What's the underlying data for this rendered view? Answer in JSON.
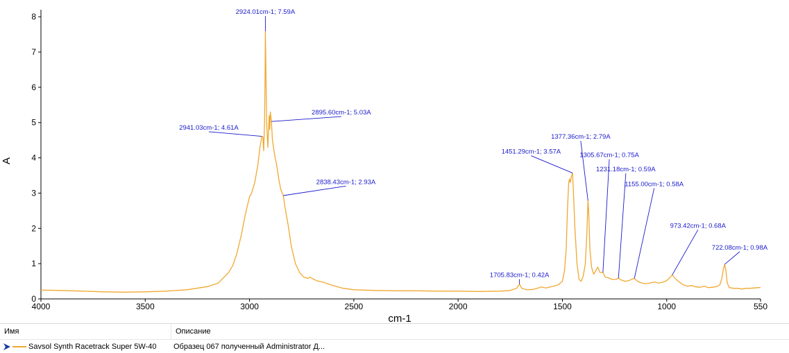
{
  "chart_data": {
    "type": "line",
    "xlabel": "cm-1",
    "ylabel": "A",
    "xlim": [
      4000,
      550
    ],
    "ylim": [
      0,
      8.2
    ],
    "x_reversed": true,
    "xticks": [
      4000,
      3500,
      3000,
      2500,
      2000,
      1500,
      1000,
      550
    ],
    "yticks": [
      0,
      1,
      2,
      3,
      4,
      5,
      6,
      7,
      8
    ],
    "grid": false,
    "series": [
      {
        "name": "Savsol Synth Racetrack Super 5W-40",
        "color": "#f0a830",
        "points": [
          [
            4000,
            0.25
          ],
          [
            3900,
            0.24
          ],
          [
            3800,
            0.22
          ],
          [
            3700,
            0.2
          ],
          [
            3600,
            0.19
          ],
          [
            3500,
            0.2
          ],
          [
            3400,
            0.22
          ],
          [
            3300,
            0.26
          ],
          [
            3200,
            0.35
          ],
          [
            3150,
            0.45
          ],
          [
            3100,
            0.75
          ],
          [
            3080,
            0.95
          ],
          [
            3060,
            1.3
          ],
          [
            3040,
            1.8
          ],
          [
            3020,
            2.4
          ],
          [
            3000,
            2.9
          ],
          [
            2990,
            3.0
          ],
          [
            2975,
            3.3
          ],
          [
            2960,
            3.8
          ],
          [
            2950,
            4.3
          ],
          [
            2941,
            4.61
          ],
          [
            2936,
            4.6
          ],
          [
            2932,
            4.2
          ],
          [
            2928,
            5.0
          ],
          [
            2925,
            6.5
          ],
          [
            2924,
            7.59
          ],
          [
            2922,
            6.8
          ],
          [
            2918,
            5.0
          ],
          [
            2912,
            4.3
          ],
          [
            2906,
            5.2
          ],
          [
            2903,
            4.8
          ],
          [
            2900,
            5.3
          ],
          [
            2895,
            5.03
          ],
          [
            2890,
            4.5
          ],
          [
            2880,
            4.1
          ],
          [
            2870,
            3.8
          ],
          [
            2860,
            3.4
          ],
          [
            2850,
            3.1
          ],
          [
            2842,
            2.98
          ],
          [
            2838,
            2.93
          ],
          [
            2830,
            2.6
          ],
          [
            2815,
            2.1
          ],
          [
            2800,
            1.5
          ],
          [
            2780,
            1.0
          ],
          [
            2760,
            0.75
          ],
          [
            2740,
            0.62
          ],
          [
            2720,
            0.58
          ],
          [
            2710,
            0.62
          ],
          [
            2700,
            0.58
          ],
          [
            2680,
            0.52
          ],
          [
            2650,
            0.48
          ],
          [
            2600,
            0.38
          ],
          [
            2550,
            0.3
          ],
          [
            2500,
            0.26
          ],
          [
            2400,
            0.24
          ],
          [
            2300,
            0.23
          ],
          [
            2200,
            0.23
          ],
          [
            2100,
            0.22
          ],
          [
            2000,
            0.22
          ],
          [
            1900,
            0.21
          ],
          [
            1800,
            0.22
          ],
          [
            1750,
            0.24
          ],
          [
            1720,
            0.3
          ],
          [
            1705.83,
            0.42
          ],
          [
            1695,
            0.3
          ],
          [
            1670,
            0.26
          ],
          [
            1640,
            0.27
          ],
          [
            1610,
            0.32
          ],
          [
            1600,
            0.34
          ],
          [
            1580,
            0.31
          ],
          [
            1550,
            0.35
          ],
          [
            1520,
            0.4
          ],
          [
            1500,
            0.5
          ],
          [
            1490,
            0.8
          ],
          [
            1482,
            1.4
          ],
          [
            1476,
            2.5
          ],
          [
            1470,
            3.3
          ],
          [
            1466,
            3.4
          ],
          [
            1462,
            3.3
          ],
          [
            1458,
            3.45
          ],
          [
            1455,
            3.5
          ],
          [
            1451.29,
            3.57
          ],
          [
            1447,
            3.0
          ],
          [
            1440,
            2.0
          ],
          [
            1430,
            1.0
          ],
          [
            1420,
            0.55
          ],
          [
            1410,
            0.5
          ],
          [
            1400,
            0.65
          ],
          [
            1390,
            1.0
          ],
          [
            1383,
            1.8
          ],
          [
            1379,
            2.5
          ],
          [
            1377.36,
            2.79
          ],
          [
            1374,
            2.5
          ],
          [
            1368,
            1.4
          ],
          [
            1360,
            0.9
          ],
          [
            1350,
            0.7
          ],
          [
            1340,
            0.8
          ],
          [
            1330,
            0.9
          ],
          [
            1320,
            0.75
          ],
          [
            1310,
            0.75
          ],
          [
            1305.67,
            0.75
          ],
          [
            1295,
            0.62
          ],
          [
            1280,
            0.6
          ],
          [
            1260,
            0.55
          ],
          [
            1240,
            0.56
          ],
          [
            1231.18,
            0.59
          ],
          [
            1220,
            0.54
          ],
          [
            1200,
            0.5
          ],
          [
            1180,
            0.52
          ],
          [
            1170,
            0.55
          ],
          [
            1155,
            0.58
          ],
          [
            1140,
            0.5
          ],
          [
            1120,
            0.45
          ],
          [
            1100,
            0.43
          ],
          [
            1080,
            0.45
          ],
          [
            1060,
            0.48
          ],
          [
            1040,
            0.45
          ],
          [
            1020,
            0.47
          ],
          [
            1000,
            0.52
          ],
          [
            985,
            0.6
          ],
          [
            973.42,
            0.68
          ],
          [
            960,
            0.58
          ],
          [
            940,
            0.48
          ],
          [
            920,
            0.4
          ],
          [
            900,
            0.36
          ],
          [
            880,
            0.38
          ],
          [
            860,
            0.34
          ],
          [
            840,
            0.33
          ],
          [
            820,
            0.36
          ],
          [
            800,
            0.32
          ],
          [
            780,
            0.33
          ],
          [
            760,
            0.35
          ],
          [
            745,
            0.4
          ],
          [
            735,
            0.6
          ],
          [
            728,
            0.85
          ],
          [
            722.08,
            0.98
          ],
          [
            716,
            0.8
          ],
          [
            710,
            0.45
          ],
          [
            700,
            0.32
          ],
          [
            680,
            0.3
          ],
          [
            660,
            0.3
          ],
          [
            640,
            0.28
          ],
          [
            620,
            0.3
          ],
          [
            600,
            0.3
          ],
          [
            580,
            0.31
          ],
          [
            560,
            0.32
          ],
          [
            550,
            0.32
          ]
        ]
      }
    ],
    "annotations": [
      {
        "text": "2924.01cm-1; 7.59A",
        "x": 2924.01,
        "y": 7.59,
        "lx": 2924.01,
        "ly": 8.02
      },
      {
        "text": "2941.03cm-1; 4.61A",
        "x": 2941.03,
        "y": 4.61,
        "lx": 3195,
        "ly": 4.74
      },
      {
        "text": "2895.60cm-1; 5.03A",
        "x": 2895.6,
        "y": 5.03,
        "lx": 2560,
        "ly": 5.17
      },
      {
        "text": "2838.43cm-1; 2.93A",
        "x": 2838.43,
        "y": 2.93,
        "lx": 2538,
        "ly": 3.2
      },
      {
        "text": "1705.83cm-1; 0.42A",
        "x": 1705.83,
        "y": 0.42,
        "lx": 1705.83,
        "ly": 0.56
      },
      {
        "text": "1451.29cm-1; 3.57A",
        "x": 1451.29,
        "y": 3.57,
        "lx": 1650,
        "ly": 4.06
      },
      {
        "text": "1377.36cm-1; 2.79A",
        "x": 1377.36,
        "y": 2.79,
        "lx": 1412,
        "ly": 4.48
      },
      {
        "text": "1305.67cm-1; 0.75A",
        "x": 1305.67,
        "y": 0.75,
        "lx": 1275,
        "ly": 3.96
      },
      {
        "text": "1231.18cm-1; 0.59A",
        "x": 1231.18,
        "y": 0.59,
        "lx": 1196,
        "ly": 3.56
      },
      {
        "text": "1155.00cm-1; 0.58A",
        "x": 1155.0,
        "y": 0.58,
        "lx": 1060,
        "ly": 3.14
      },
      {
        "text": "973.42cm-1; 0.68A",
        "x": 973.42,
        "y": 0.68,
        "lx": 850,
        "ly": 1.96
      },
      {
        "text": "722.08cm-1; 0.98A",
        "x": 722.08,
        "y": 0.98,
        "lx": 650,
        "ly": 1.34
      }
    ]
  },
  "legend": {
    "col_name": "Имя",
    "col_desc": "Описание",
    "row_name": "Savsol Synth Racetrack Super 5W-40",
    "row_desc": "Образец 067 полученный Administrator Д..."
  }
}
